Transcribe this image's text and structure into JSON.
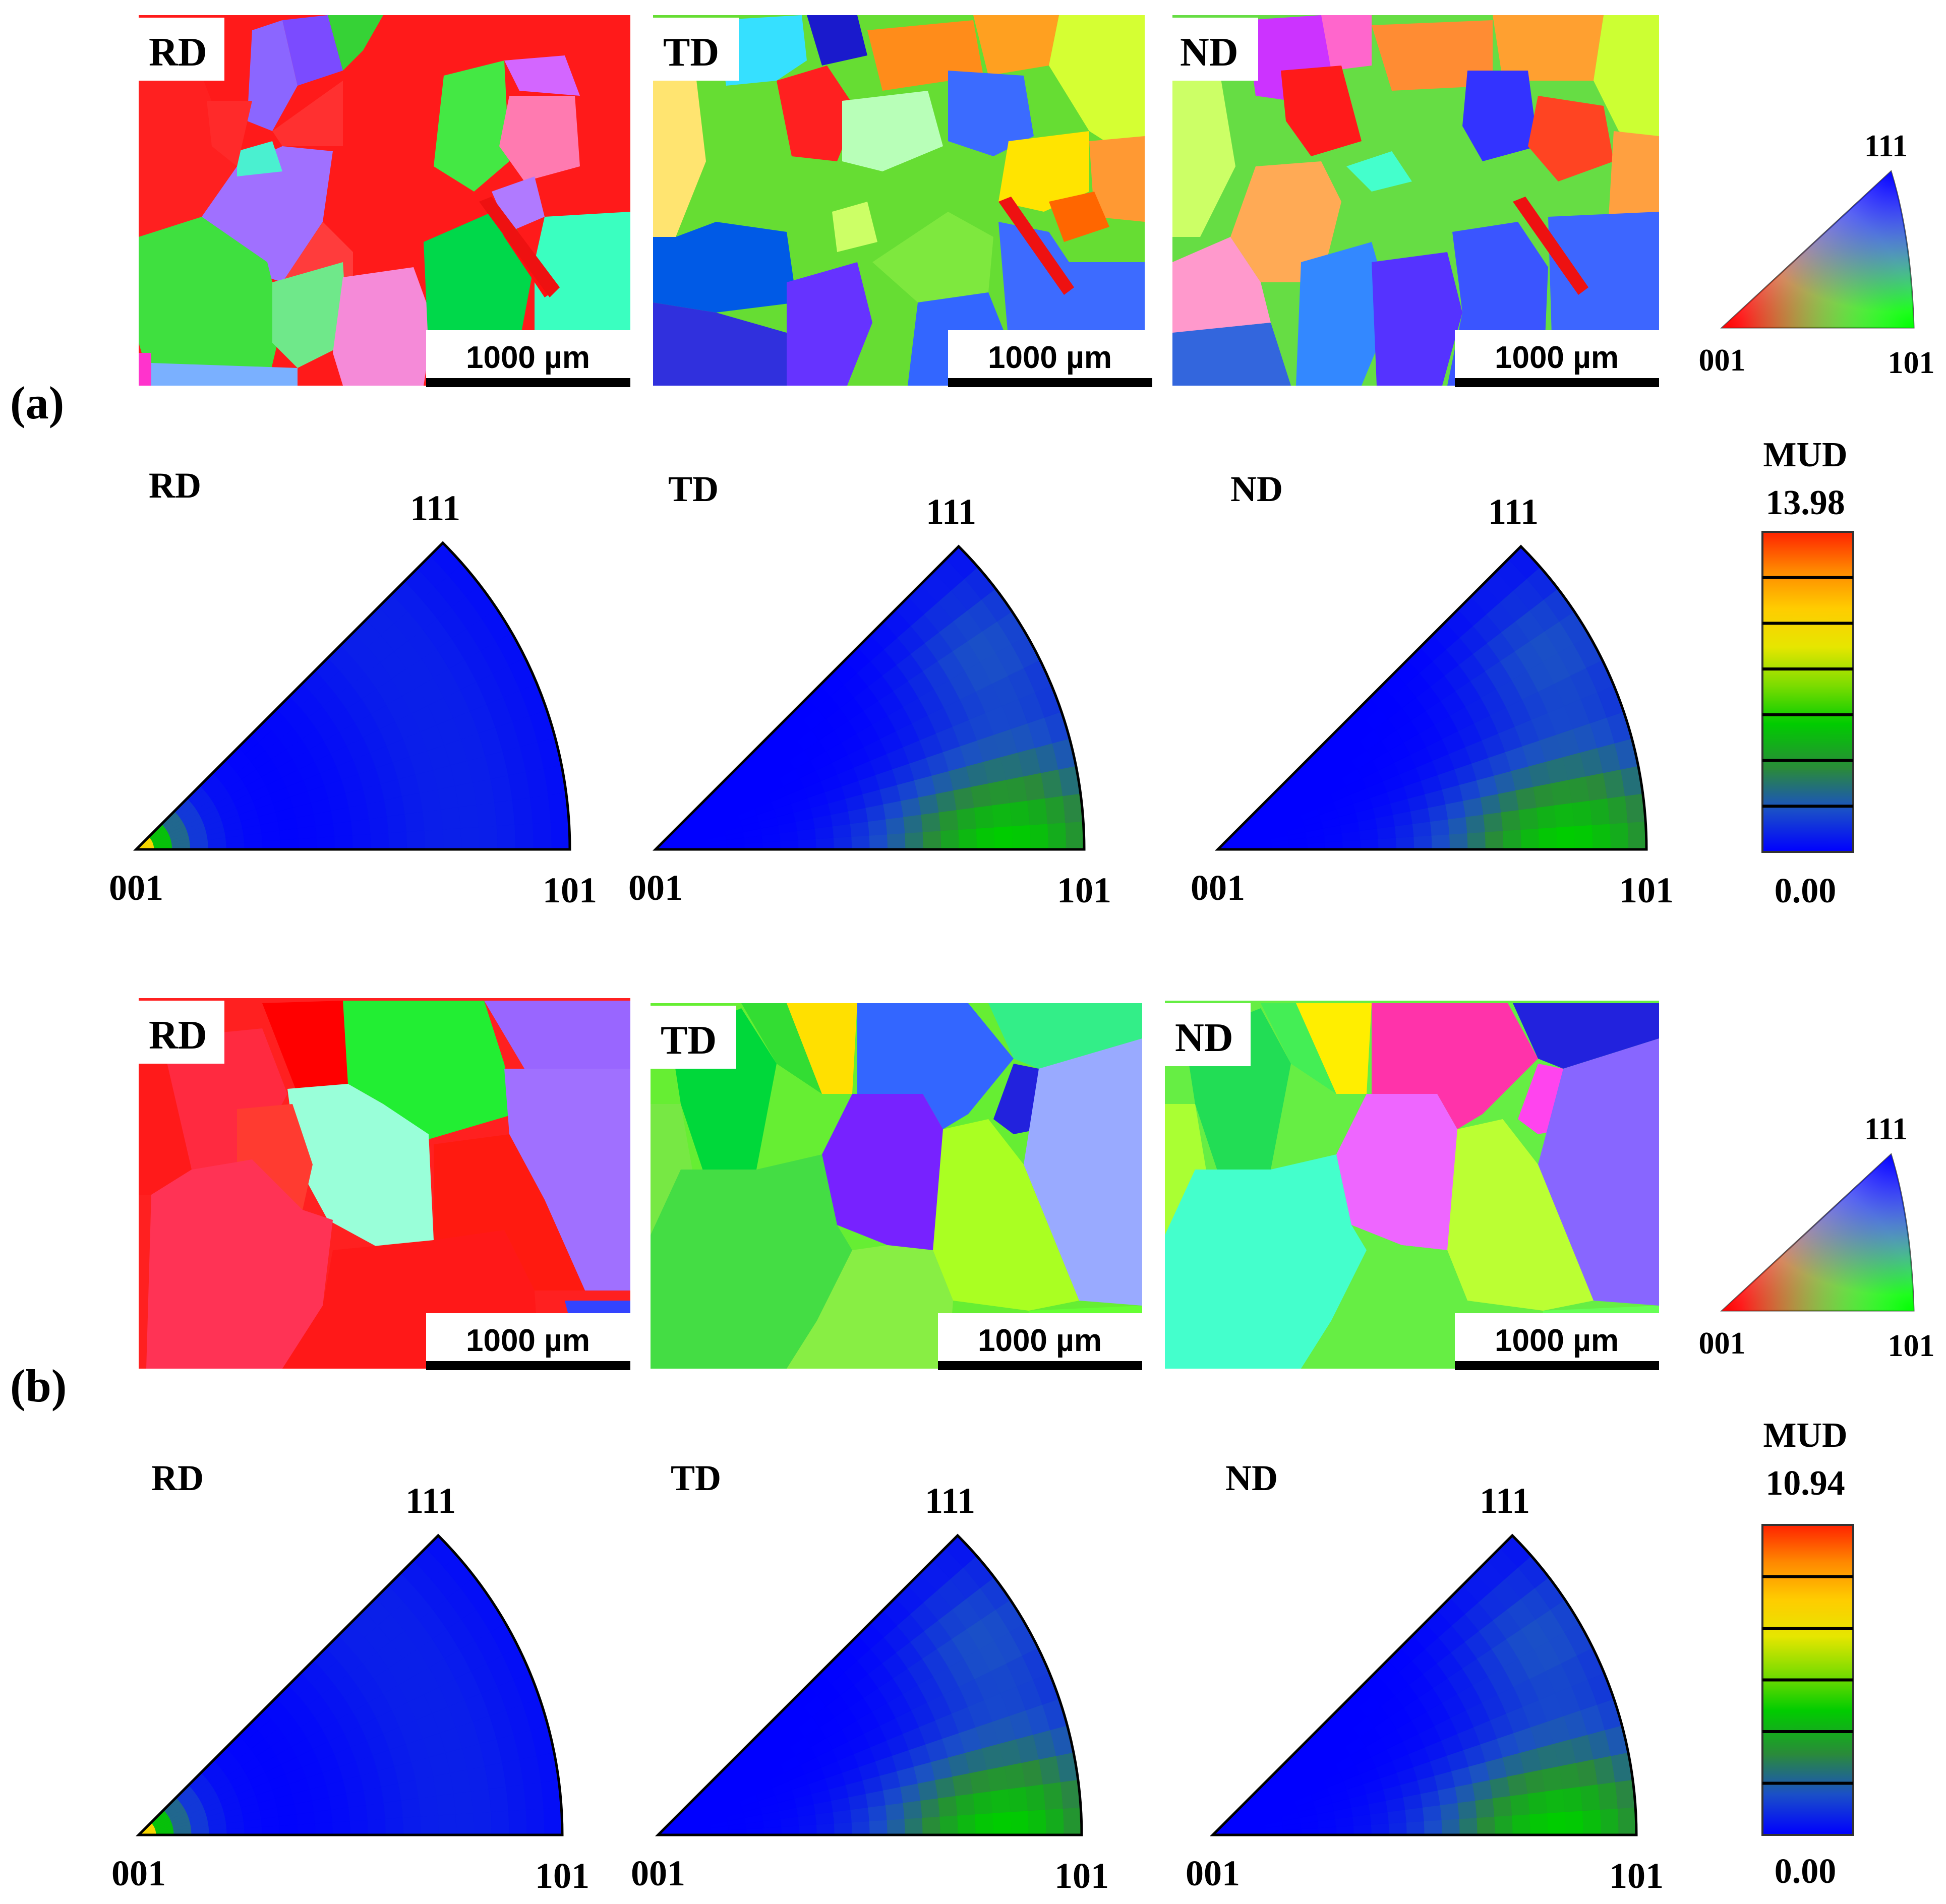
{
  "panels": [
    {
      "label": "(a)",
      "maps": [
        {
          "direction": "RD",
          "scale_bar": "1000 µm"
        },
        {
          "direction": "TD",
          "scale_bar": "1000 µm"
        },
        {
          "direction": "ND",
          "scale_bar": "1000 µm"
        }
      ],
      "key": {
        "top": "111",
        "left": "001",
        "right": "101"
      },
      "ipfs": [
        {
          "direction": "RD",
          "top": "111",
          "left": "001",
          "right": "101",
          "peak": "001"
        },
        {
          "direction": "TD",
          "top": "111",
          "left": "001",
          "right": "101",
          "peak": "101"
        },
        {
          "direction": "ND",
          "top": "111",
          "left": "001",
          "right": "101",
          "peak": "101"
        }
      ],
      "colorbar": {
        "title": "MUD",
        "max": "13.98",
        "min": "0.00"
      }
    },
    {
      "label": "(b)",
      "maps": [
        {
          "direction": "RD",
          "scale_bar": "1000 µm"
        },
        {
          "direction": "TD",
          "scale_bar": "1000 µm"
        },
        {
          "direction": "ND",
          "scale_bar": "1000 µm"
        }
      ],
      "key": {
        "top": "111",
        "left": "001",
        "right": "101"
      },
      "ipfs": [
        {
          "direction": "RD",
          "top": "111",
          "left": "001",
          "right": "101",
          "peak": "001"
        },
        {
          "direction": "TD",
          "top": "111",
          "left": "001",
          "right": "101",
          "peak": "101"
        },
        {
          "direction": "ND",
          "top": "111",
          "left": "001",
          "right": "101",
          "peak": "101"
        }
      ],
      "colorbar": {
        "title": "MUD",
        "max": "10.94",
        "min": "0.00"
      }
    }
  ],
  "colors": {
    "colorbar": [
      "#0000ff",
      "#1a4fc8",
      "#2a8a3a",
      "#00cc00",
      "#7cdc00",
      "#e6e600",
      "#ffcc00",
      "#ff8800",
      "#ff2200"
    ]
  }
}
